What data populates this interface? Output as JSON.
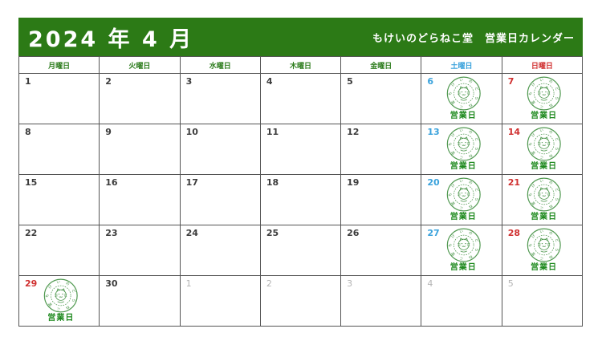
{
  "header": {
    "title": "2024 年 4 月",
    "subtitle": "もけいのどらねこ堂　営業日カレンダー"
  },
  "weekdays": [
    {
      "label": "月曜日",
      "type": "weekday"
    },
    {
      "label": "火曜日",
      "type": "weekday"
    },
    {
      "label": "水曜日",
      "type": "weekday"
    },
    {
      "label": "木曜日",
      "type": "weekday"
    },
    {
      "label": "金曜日",
      "type": "weekday"
    },
    {
      "label": "土曜日",
      "type": "saturday"
    },
    {
      "label": "日曜日",
      "type": "sunday"
    }
  ],
  "stamp": {
    "ring_text": "もけいのどらねこ堂",
    "label": "営業日"
  },
  "colors": {
    "header_green": "#2c7a16",
    "weekday_text_green": "#2e7d1e",
    "saturday_blue": "#3aa2dc",
    "sunday_red": "#d03030",
    "stamp_green": "#3f8f3f",
    "stamp_label_green": "#1f8a1f",
    "other_month_gray": "#b4b4b4",
    "grid_border_gray": "#555555",
    "day_number_color": "#3c3c3c"
  },
  "weeks": [
    [
      {
        "day": "1",
        "type": "normal",
        "stamp": false
      },
      {
        "day": "2",
        "type": "normal",
        "stamp": false
      },
      {
        "day": "3",
        "type": "normal",
        "stamp": false
      },
      {
        "day": "4",
        "type": "normal",
        "stamp": false
      },
      {
        "day": "5",
        "type": "normal",
        "stamp": false
      },
      {
        "day": "6",
        "type": "saturday",
        "stamp": true
      },
      {
        "day": "7",
        "type": "sunday",
        "stamp": true
      }
    ],
    [
      {
        "day": "8",
        "type": "normal",
        "stamp": false
      },
      {
        "day": "9",
        "type": "normal",
        "stamp": false
      },
      {
        "day": "10",
        "type": "normal",
        "stamp": false
      },
      {
        "day": "11",
        "type": "normal",
        "stamp": false
      },
      {
        "day": "12",
        "type": "normal",
        "stamp": false
      },
      {
        "day": "13",
        "type": "saturday",
        "stamp": true
      },
      {
        "day": "14",
        "type": "sunday",
        "stamp": true
      }
    ],
    [
      {
        "day": "15",
        "type": "normal",
        "stamp": false
      },
      {
        "day": "16",
        "type": "normal",
        "stamp": false
      },
      {
        "day": "17",
        "type": "normal",
        "stamp": false
      },
      {
        "day": "18",
        "type": "normal",
        "stamp": false
      },
      {
        "day": "19",
        "type": "normal",
        "stamp": false
      },
      {
        "day": "20",
        "type": "saturday",
        "stamp": true
      },
      {
        "day": "21",
        "type": "sunday",
        "stamp": true
      }
    ],
    [
      {
        "day": "22",
        "type": "normal",
        "stamp": false
      },
      {
        "day": "23",
        "type": "normal",
        "stamp": false
      },
      {
        "day": "24",
        "type": "normal",
        "stamp": false
      },
      {
        "day": "25",
        "type": "normal",
        "stamp": false
      },
      {
        "day": "26",
        "type": "normal",
        "stamp": false
      },
      {
        "day": "27",
        "type": "saturday",
        "stamp": true
      },
      {
        "day": "28",
        "type": "sunday",
        "stamp": true
      }
    ],
    [
      {
        "day": "29",
        "type": "holiday",
        "stamp": true
      },
      {
        "day": "30",
        "type": "normal",
        "stamp": false
      },
      {
        "day": "1",
        "type": "other",
        "stamp": false
      },
      {
        "day": "2",
        "type": "other",
        "stamp": false
      },
      {
        "day": "3",
        "type": "other",
        "stamp": false
      },
      {
        "day": "4",
        "type": "other",
        "stamp": false
      },
      {
        "day": "5",
        "type": "other",
        "stamp": false
      }
    ]
  ]
}
